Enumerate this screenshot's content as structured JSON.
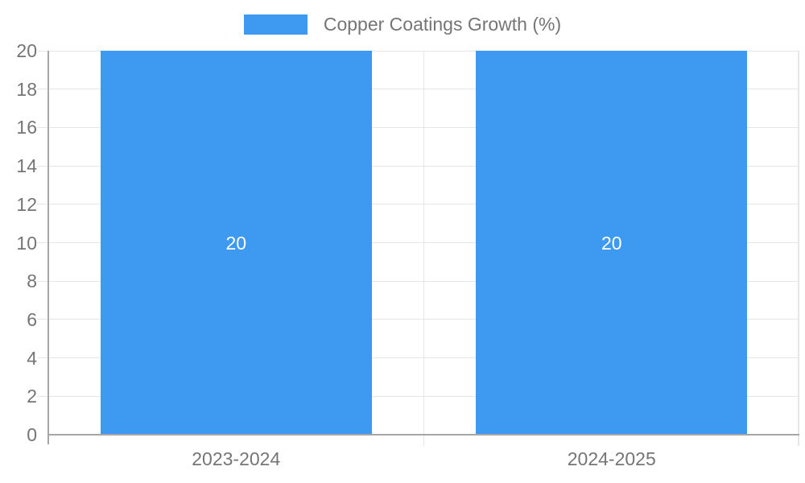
{
  "legend": {
    "label": "Copper Coatings Growth (%)"
  },
  "colors": {
    "bar": "#3d9af0",
    "grid": "#e6e6e6",
    "axis": "#a6a6a6",
    "tick_text": "#757575",
    "legend_text": "#757575",
    "bar_label_text": "#ffffff",
    "background": "#ffffff"
  },
  "chart_data": {
    "type": "bar",
    "title": "",
    "xlabel": "",
    "ylabel": "",
    "categories": [
      "2023-2024",
      "2024-2025"
    ],
    "series": [
      {
        "name": "Copper Coatings Growth (%)",
        "color": "#3d9af0",
        "values": [
          20,
          20
        ]
      }
    ],
    "bar_value_labels": [
      "20",
      "20"
    ],
    "ylim": [
      0,
      20
    ],
    "yticks": [
      0,
      2,
      4,
      6,
      8,
      10,
      12,
      14,
      16,
      18,
      20
    ],
    "grid": true,
    "legend_position": "top"
  }
}
